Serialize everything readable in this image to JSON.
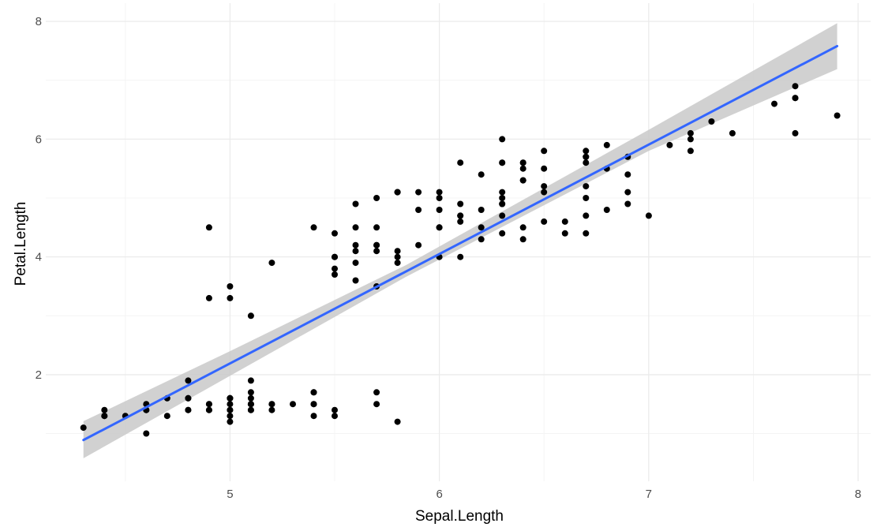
{
  "chart_data": {
    "type": "scatter",
    "xlabel": "Sepal.Length",
    "ylabel": "Petal.Length",
    "xlim": [
      4.12,
      8.06
    ],
    "ylim": [
      0.19,
      8.31
    ],
    "x_ticks": [
      5,
      6,
      7,
      8
    ],
    "y_ticks": [
      2,
      4,
      6,
      8
    ],
    "grid": true,
    "colors": {
      "points": "#000000",
      "line": "#3366ff",
      "band": "#c9c9c9",
      "grid_major": "#ebebeb",
      "grid_minor": "#f4f4f4"
    },
    "points": [
      [
        5.1,
        1.4
      ],
      [
        4.9,
        1.4
      ],
      [
        4.7,
        1.3
      ],
      [
        4.6,
        1.5
      ],
      [
        5.0,
        1.4
      ],
      [
        5.4,
        1.7
      ],
      [
        4.6,
        1.4
      ],
      [
        5.0,
        1.5
      ],
      [
        4.4,
        1.4
      ],
      [
        4.9,
        1.5
      ],
      [
        5.4,
        1.5
      ],
      [
        4.8,
        1.6
      ],
      [
        4.8,
        1.4
      ],
      [
        4.3,
        1.1
      ],
      [
        5.8,
        1.2
      ],
      [
        5.7,
        1.5
      ],
      [
        5.4,
        1.3
      ],
      [
        5.1,
        1.4
      ],
      [
        5.7,
        1.7
      ],
      [
        5.1,
        1.5
      ],
      [
        5.4,
        1.7
      ],
      [
        5.1,
        1.5
      ],
      [
        4.6,
        1.0
      ],
      [
        5.1,
        1.7
      ],
      [
        4.8,
        1.9
      ],
      [
        5.0,
        1.6
      ],
      [
        5.0,
        1.6
      ],
      [
        5.2,
        1.5
      ],
      [
        5.2,
        1.4
      ],
      [
        4.7,
        1.6
      ],
      [
        4.8,
        1.6
      ],
      [
        5.4,
        1.5
      ],
      [
        5.2,
        1.5
      ],
      [
        5.5,
        1.4
      ],
      [
        4.9,
        1.5
      ],
      [
        5.0,
        1.2
      ],
      [
        5.5,
        1.3
      ],
      [
        4.9,
        1.4
      ],
      [
        4.4,
        1.3
      ],
      [
        5.1,
        1.5
      ],
      [
        5.0,
        1.3
      ],
      [
        4.5,
        1.3
      ],
      [
        4.4,
        1.3
      ],
      [
        5.0,
        1.6
      ],
      [
        5.1,
        1.9
      ],
      [
        4.8,
        1.4
      ],
      [
        5.1,
        1.6
      ],
      [
        4.6,
        1.4
      ],
      [
        5.3,
        1.5
      ],
      [
        5.0,
        1.4
      ],
      [
        7.0,
        4.7
      ],
      [
        6.4,
        4.5
      ],
      [
        6.9,
        4.9
      ],
      [
        5.5,
        4.0
      ],
      [
        6.5,
        4.6
      ],
      [
        5.7,
        4.5
      ],
      [
        6.3,
        4.7
      ],
      [
        4.9,
        3.3
      ],
      [
        6.6,
        4.6
      ],
      [
        5.2,
        3.9
      ],
      [
        5.0,
        3.5
      ],
      [
        5.9,
        4.2
      ],
      [
        6.0,
        4.0
      ],
      [
        6.1,
        4.7
      ],
      [
        5.6,
        3.6
      ],
      [
        6.7,
        4.4
      ],
      [
        5.6,
        4.5
      ],
      [
        5.8,
        4.1
      ],
      [
        6.2,
        4.5
      ],
      [
        5.6,
        3.9
      ],
      [
        5.9,
        4.8
      ],
      [
        6.1,
        4.0
      ],
      [
        6.3,
        4.9
      ],
      [
        6.1,
        4.7
      ],
      [
        6.4,
        4.3
      ],
      [
        6.6,
        4.4
      ],
      [
        6.8,
        4.8
      ],
      [
        6.7,
        5.0
      ],
      [
        6.0,
        4.5
      ],
      [
        5.7,
        3.5
      ],
      [
        5.5,
        3.8
      ],
      [
        5.5,
        3.7
      ],
      [
        5.8,
        3.9
      ],
      [
        6.0,
        5.1
      ],
      [
        5.4,
        4.5
      ],
      [
        6.0,
        4.5
      ],
      [
        6.7,
        4.7
      ],
      [
        6.3,
        4.4
      ],
      [
        5.6,
        4.1
      ],
      [
        5.5,
        4.0
      ],
      [
        5.5,
        4.4
      ],
      [
        6.1,
        4.6
      ],
      [
        5.8,
        4.0
      ],
      [
        5.0,
        3.3
      ],
      [
        5.6,
        4.2
      ],
      [
        5.7,
        4.2
      ],
      [
        5.7,
        4.2
      ],
      [
        6.2,
        4.3
      ],
      [
        5.1,
        3.0
      ],
      [
        5.7,
        4.1
      ],
      [
        6.3,
        6.0
      ],
      [
        5.8,
        5.1
      ],
      [
        7.1,
        5.9
      ],
      [
        6.3,
        5.6
      ],
      [
        6.5,
        5.8
      ],
      [
        7.6,
        6.6
      ],
      [
        4.9,
        4.5
      ],
      [
        7.3,
        6.3
      ],
      [
        6.7,
        5.8
      ],
      [
        7.2,
        6.1
      ],
      [
        6.5,
        5.1
      ],
      [
        6.4,
        5.3
      ],
      [
        6.8,
        5.5
      ],
      [
        5.7,
        5.0
      ],
      [
        5.8,
        5.1
      ],
      [
        6.4,
        5.3
      ],
      [
        6.5,
        5.5
      ],
      [
        7.7,
        6.7
      ],
      [
        7.7,
        6.9
      ],
      [
        6.0,
        5.0
      ],
      [
        6.9,
        5.7
      ],
      [
        5.6,
        4.9
      ],
      [
        7.7,
        6.7
      ],
      [
        6.3,
        4.9
      ],
      [
        6.7,
        5.7
      ],
      [
        7.2,
        6.0
      ],
      [
        6.2,
        4.8
      ],
      [
        6.1,
        4.9
      ],
      [
        6.4,
        5.6
      ],
      [
        7.2,
        5.8
      ],
      [
        7.4,
        6.1
      ],
      [
        7.9,
        6.4
      ],
      [
        6.4,
        5.6
      ],
      [
        6.3,
        5.1
      ],
      [
        6.1,
        5.6
      ],
      [
        7.7,
        6.1
      ],
      [
        6.3,
        5.6
      ],
      [
        6.4,
        5.5
      ],
      [
        6.0,
        4.8
      ],
      [
        6.9,
        5.4
      ],
      [
        6.7,
        5.6
      ],
      [
        6.9,
        5.1
      ],
      [
        5.8,
        5.1
      ],
      [
        6.8,
        5.9
      ],
      [
        6.7,
        5.7
      ],
      [
        6.7,
        5.2
      ],
      [
        6.3,
        5.0
      ],
      [
        6.5,
        5.2
      ],
      [
        6.2,
        5.4
      ],
      [
        5.9,
        5.1
      ]
    ],
    "trend_line": {
      "method": "lm",
      "intercept": -7.101,
      "slope": 1.8584,
      "x_range": [
        4.3,
        7.9
      ],
      "confidence_band": [
        {
          "x": 4.3,
          "lower": 0.58,
          "upper": 1.21
        },
        {
          "x": 5.0,
          "lower": 1.98,
          "upper": 2.4
        },
        {
          "x": 5.84,
          "lower": 3.66,
          "upper": 3.86
        },
        {
          "x": 7.0,
          "lower": 5.8,
          "upper": 6.16
        },
        {
          "x": 7.9,
          "lower": 7.19,
          "upper": 7.97
        }
      ]
    }
  }
}
